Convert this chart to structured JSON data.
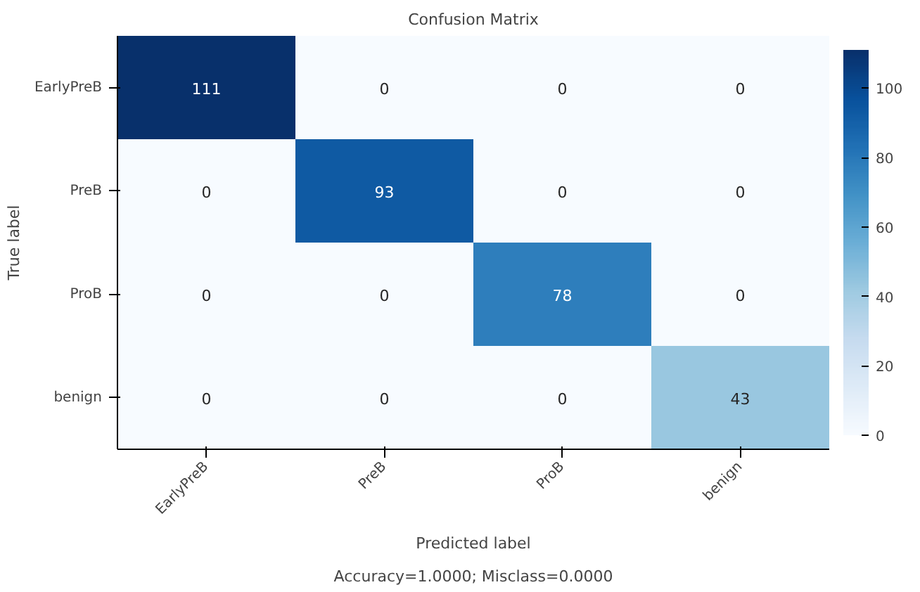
{
  "chart_data": {
    "type": "heatmap",
    "title": "Confusion Matrix",
    "xlabel": "Predicted label",
    "ylabel": "True label",
    "annotations": [
      "Accuracy=1.0000; Misclass=0.0000"
    ],
    "categories": [
      "EarlyPreB",
      "PreB",
      "ProB",
      "benign"
    ],
    "y_categories": [
      "EarlyPreB",
      "PreB",
      "ProB",
      "benign"
    ],
    "cells": [
      [
        111,
        0,
        0,
        0
      ],
      [
        0,
        93,
        0,
        0
      ],
      [
        0,
        0,
        78,
        0
      ],
      [
        0,
        0,
        0,
        43
      ]
    ],
    "clim": [
      0,
      111
    ],
    "cticks": [
      0,
      20,
      40,
      60,
      80,
      100
    ],
    "data_labels": true
  }
}
